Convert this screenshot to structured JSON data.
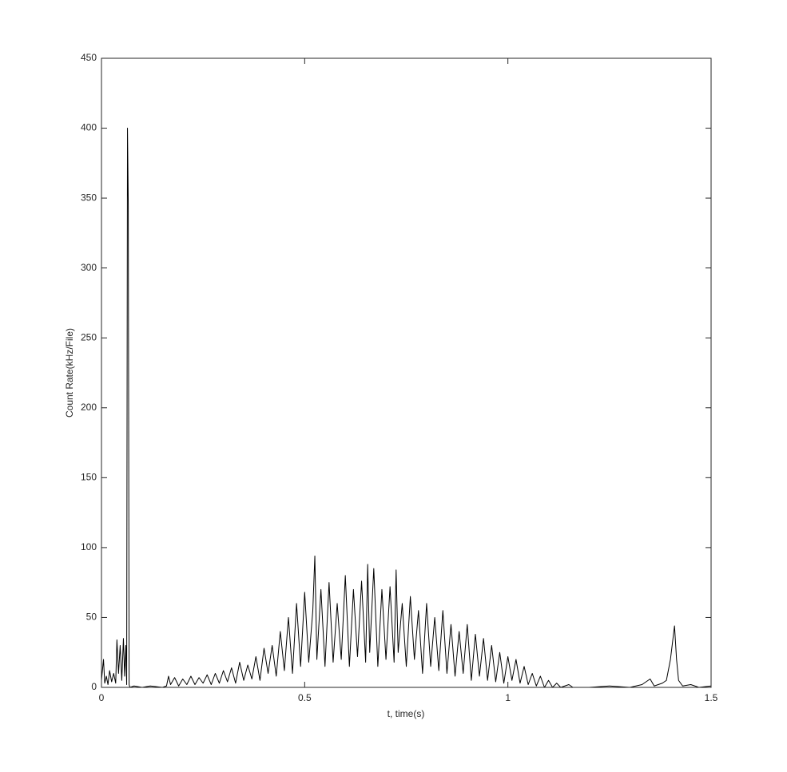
{
  "chart_data": {
    "type": "line",
    "xlabel": "t, time(s)",
    "ylabel": "Count Rate(kHz/File)",
    "xlim": [
      0,
      1.5
    ],
    "xticks": [
      0,
      0.5,
      1,
      1.5
    ],
    "ylim": [
      0,
      450
    ],
    "yticks": [
      0,
      50,
      100,
      150,
      200,
      250,
      300,
      350,
      400,
      450
    ],
    "box": true,
    "series": [
      {
        "color": "#000000",
        "x": [
          0,
          0.005,
          0.008,
          0.012,
          0.016,
          0.02,
          0.025,
          0.03,
          0.035,
          0.038,
          0.042,
          0.046,
          0.05,
          0.054,
          0.057,
          0.06,
          0.062,
          0.064,
          0.066,
          0.068,
          0.07,
          0.08,
          0.1,
          0.12,
          0.15,
          0.16,
          0.165,
          0.17,
          0.18,
          0.19,
          0.2,
          0.21,
          0.22,
          0.23,
          0.24,
          0.25,
          0.26,
          0.27,
          0.28,
          0.29,
          0.3,
          0.31,
          0.32,
          0.33,
          0.34,
          0.35,
          0.36,
          0.37,
          0.38,
          0.39,
          0.4,
          0.41,
          0.42,
          0.43,
          0.44,
          0.45,
          0.46,
          0.47,
          0.48,
          0.49,
          0.5,
          0.51,
          0.52,
          0.525,
          0.53,
          0.54,
          0.55,
          0.56,
          0.57,
          0.58,
          0.59,
          0.6,
          0.61,
          0.62,
          0.63,
          0.64,
          0.65,
          0.655,
          0.66,
          0.67,
          0.68,
          0.69,
          0.7,
          0.71,
          0.72,
          0.725,
          0.73,
          0.74,
          0.75,
          0.76,
          0.77,
          0.78,
          0.79,
          0.8,
          0.81,
          0.82,
          0.83,
          0.84,
          0.85,
          0.86,
          0.87,
          0.88,
          0.89,
          0.9,
          0.91,
          0.92,
          0.93,
          0.94,
          0.95,
          0.96,
          0.97,
          0.98,
          0.99,
          1,
          1.01,
          1.02,
          1.03,
          1.04,
          1.05,
          1.06,
          1.07,
          1.08,
          1.09,
          1.1,
          1.11,
          1.12,
          1.13,
          1.15,
          1.16,
          1.2,
          1.25,
          1.3,
          1.33,
          1.35,
          1.36,
          1.38,
          1.39,
          1.4,
          1.41,
          1.415,
          1.42,
          1.43,
          1.45,
          1.47,
          1.5
        ],
        "values": [
          5,
          20,
          3,
          8,
          2,
          12,
          4,
          10,
          3,
          34,
          10,
          30,
          5,
          35,
          8,
          30,
          2,
          400,
          345,
          2,
          0,
          1,
          0,
          1,
          0,
          1,
          8,
          2,
          7,
          1,
          6,
          2,
          8,
          2,
          7,
          3,
          9,
          2,
          10,
          3,
          12,
          4,
          14,
          3,
          18,
          5,
          16,
          6,
          22,
          5,
          28,
          10,
          30,
          8,
          40,
          12,
          50,
          10,
          60,
          15,
          68,
          18,
          55,
          94,
          20,
          70,
          15,
          75,
          18,
          60,
          20,
          80,
          15,
          70,
          22,
          76,
          18,
          88,
          25,
          85,
          15,
          70,
          20,
          72,
          18,
          84,
          25,
          60,
          15,
          65,
          20,
          55,
          10,
          60,
          15,
          50,
          12,
          55,
          10,
          45,
          8,
          40,
          10,
          45,
          5,
          38,
          8,
          35,
          5,
          30,
          4,
          25,
          3,
          22,
          5,
          20,
          3,
          15,
          2,
          10,
          1,
          8,
          0,
          5,
          0,
          3,
          0,
          2,
          0,
          0,
          1,
          0,
          2,
          6,
          1,
          3,
          5,
          20,
          44,
          20,
          5,
          1,
          2,
          0,
          1
        ]
      }
    ]
  }
}
